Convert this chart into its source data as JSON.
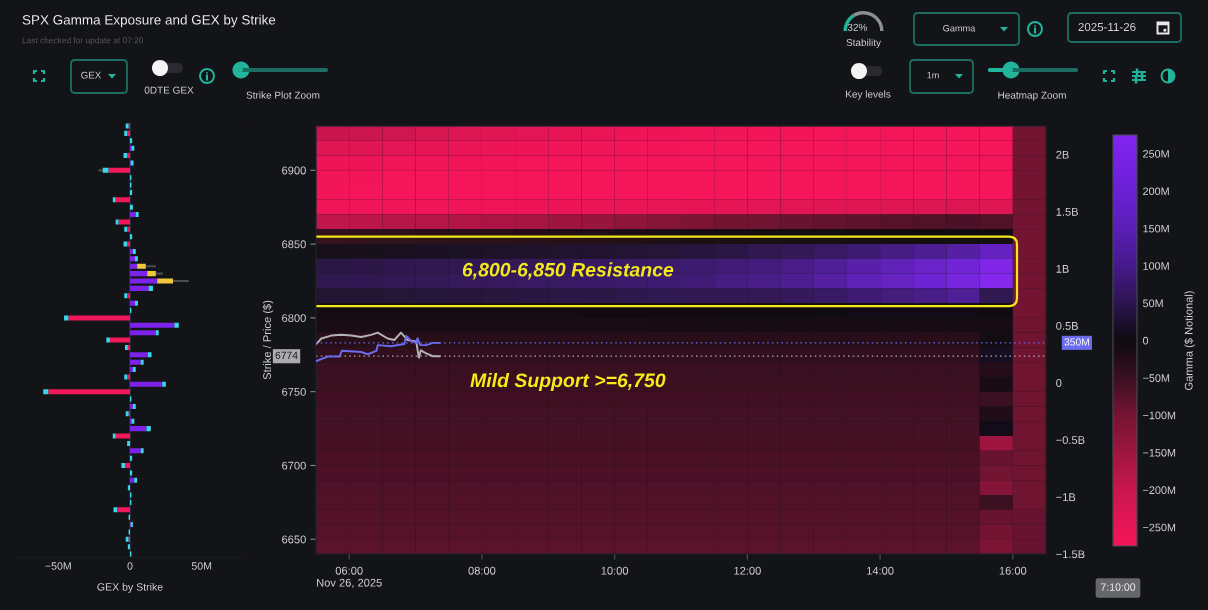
{
  "chart_data": [
    {
      "type": "other",
      "title": "SPX Gamma Exposure and GEX by Strike",
      "subtitle": "Last checked for update at 07:20",
      "annotations": [
        "GEX",
        "0DTE GEX",
        "Strike Plot Zoom",
        "Gamma",
        "2025-11-26",
        "Key levels",
        "1m",
        "Heatmap Zoom"
      ]
    },
    {
      "type": "donut",
      "title": "Stability",
      "categories": [
        null,
        null
      ],
      "values": [
        32,
        68
      ],
      "colors": [
        "#22b59c",
        "#8e8f93"
      ],
      "value_labels": [
        "32%",
        null
      ]
    },
    {
      "type": "bar",
      "orientation": "horizontal",
      "stacked": true,
      "xlabel": "GEX by Strike",
      "tick_labels": "x",
      "categories": [
        null,
        null,
        null,
        null,
        null,
        null,
        null,
        null,
        null,
        null,
        null,
        null,
        null,
        null,
        null,
        null,
        null,
        null,
        null,
        null,
        null,
        null,
        null,
        null,
        null,
        null,
        null,
        null,
        null,
        null,
        null,
        null,
        null,
        null,
        null,
        null,
        null,
        null,
        null,
        null,
        null,
        null,
        null,
        null,
        null,
        null,
        null,
        null,
        null,
        null,
        null,
        null,
        null,
        null,
        null,
        null,
        null,
        null,
        null
      ],
      "series": [
        {
          "values": [
            -1,
            -2,
            null,
            1,
            -2,
            0.5,
            -15,
            null,
            null,
            null,
            -10,
            null,
            4,
            -8,
            -2,
            null,
            -2,
            2,
            3.5,
            5,
            12,
            19,
            13,
            -2,
            3.5,
            null,
            -43,
            31,
            18,
            -14,
            -1.5,
            12.5,
            7.5,
            2,
            -2,
            22.5,
            -57,
            null,
            2,
            -1,
            1,
            11.5,
            -10,
            null,
            7.5,
            null,
            -3.5,
            null,
            3,
            null,
            null,
            null,
            -9,
            null,
            0.5,
            null,
            -1,
            null,
            null
          ],
          "colors": [
            "#f2185c",
            "#f2185c",
            "#7d22ea",
            "#7d22ea",
            "#f2185c",
            "#7d22ea",
            "#f2185c",
            "#7d22ea",
            "#7d22ea",
            "#7d22ea",
            "#f2185c",
            "#7d22ea",
            "#7d22ea",
            "#f2185c",
            "#f2185c",
            "#7d22ea",
            "#f2185c",
            "#7d22ea",
            "#7d22ea",
            "#7d22ea",
            "#7d22ea",
            "#7d22ea",
            "#7d22ea",
            "#f2185c",
            "#7d22ea",
            "#7d22ea",
            "#f2185c",
            "#7d22ea",
            "#7d22ea",
            "#f2185c",
            "#f2185c",
            "#7d22ea",
            "#7d22ea",
            "#7d22ea",
            "#f2185c",
            "#7d22ea",
            "#f2185c",
            "#7d22ea",
            "#7d22ea",
            "#f2185c",
            "#7d22ea",
            "#7d22ea",
            "#f2185c",
            "#7d22ea",
            "#7d22ea",
            "#7d22ea",
            "#f2185c",
            "#7d22ea",
            "#7d22ea",
            "#7d22ea",
            "#7d22ea",
            "#7d22ea",
            "#f2185c",
            "#7d22ea",
            "#7d22ea",
            "#7d22ea",
            "#f2185c",
            "#7d22ea",
            "#7d22ea"
          ]
        },
        {
          "values": [
            -2,
            -2,
            1.5,
            2,
            -2.5,
            2,
            -4,
            1,
            1,
            1.5,
            -2,
            2,
            2,
            -2,
            -2,
            1.5,
            -2.5,
            2,
            2,
            6,
            6,
            11,
            3,
            -2,
            2,
            1,
            -3,
            3,
            2,
            -2.5,
            -2,
            2.5,
            2,
            2,
            -2,
            2.5,
            -3.5,
            1,
            2,
            -2,
            2,
            3,
            -2,
            -2,
            2,
            1.5,
            -2.5,
            1.5,
            2,
            -1.5,
            1,
            1,
            -2.5,
            -1,
            1.5,
            -1,
            -2,
            -1.5,
            1
          ],
          "colors": [
            "#38d8ea",
            "#38d8ea",
            "#38d8ea",
            "#38d8ea",
            "#38d8ea",
            "#38d8ea",
            "#38d8ea",
            "#38d8ea",
            "#38d8ea",
            "#38d8ea",
            "#38d8ea",
            "#38d8ea",
            "#38d8ea",
            "#38d8ea",
            "#38d8ea",
            "#38d8ea",
            "#38d8ea",
            "#38d8ea",
            "#38d8ea",
            "#f0c93a",
            "#f0c93a",
            "#f0c93a",
            "#38d8ea",
            "#38d8ea",
            "#38d8ea",
            "#38d8ea",
            "#38d8ea",
            "#38d8ea",
            "#38d8ea",
            "#38d8ea",
            "#38d8ea",
            "#38d8ea",
            "#38d8ea",
            "#38d8ea",
            "#38d8ea",
            "#38d8ea",
            "#38d8ea",
            "#38d8ea",
            "#38d8ea",
            "#38d8ea",
            "#38d8ea",
            "#38d8ea",
            "#38d8ea",
            "#38d8ea",
            "#38d8ea",
            "#38d8ea",
            "#38d8ea",
            "#38d8ea",
            "#38d8ea",
            "#38d8ea",
            "#38d8ea",
            "#38d8ea",
            "#38d8ea",
            "#38d8ea",
            "#38d8ea",
            "#38d8ea",
            "#38d8ea",
            "#38d8ea",
            "#38d8ea"
          ],
          "errors": [
            null,
            null,
            null,
            null,
            null,
            null,
            [
              -22,
              -19
            ],
            null,
            null,
            null,
            null,
            null,
            null,
            null,
            null,
            null,
            null,
            null,
            null,
            [
              11,
              18
            ],
            [
              18,
              23
            ],
            [
              30,
              41
            ],
            null,
            null,
            null,
            null,
            null,
            null,
            null,
            null,
            null,
            null,
            null,
            null,
            null,
            null,
            null,
            null,
            null,
            null,
            null,
            null,
            null,
            null,
            null,
            null,
            null,
            null,
            null,
            null,
            null,
            null,
            null,
            null,
            null,
            null,
            null,
            null,
            null
          ]
        }
      ],
      "xlim": [
        -80,
        80
      ],
      "xticks": [
        {
          "value": -50,
          "label": "−50M"
        },
        0,
        {
          "value": 50,
          "label": "50M"
        }
      ],
      "ref_lines": [
        {
          "axis": "x",
          "value": 0,
          "color": "#3a2d4f"
        }
      ]
    },
    {
      "type": "heatmap",
      "ylabel": "Strike / Price ($)",
      "clabel": "Gamma ($ Notional)",
      "x": [
        5.75,
        6.25,
        6.75,
        7.25,
        7.75,
        8.25,
        8.75,
        9.25,
        9.75,
        10.25,
        10.75,
        11.25,
        11.75,
        12.25,
        12.75,
        13.25,
        13.75,
        14.25,
        14.75,
        15.25,
        15.75,
        16.25
      ],
      "y": [
        6925,
        6915,
        6905,
        6895,
        6885,
        6875,
        6865,
        6855,
        6845,
        6835,
        6825,
        6815,
        6805,
        6795,
        6785,
        6775,
        6765,
        6755,
        6745,
        6735,
        6725,
        6715,
        6705,
        6695,
        6685,
        6675,
        6665,
        6655,
        6645
      ],
      "cells": [
        [
          -200,
          -205,
          -210,
          -220,
          -230,
          -240,
          -245,
          -250,
          -255,
          -260,
          -262,
          -265,
          -268,
          -270,
          -270,
          -272,
          -272,
          -275,
          -275,
          -275,
          -275,
          -100
        ],
        [
          -235,
          -240,
          -245,
          -250,
          -255,
          -260,
          -262,
          -265,
          -268,
          -270,
          -270,
          -272,
          -272,
          -275,
          -275,
          -275,
          -275,
          -275,
          -275,
          -275,
          -275,
          -100
        ],
        [
          -260,
          -262,
          -265,
          -268,
          -270,
          -270,
          -272,
          -272,
          -275,
          -275,
          -275,
          -275,
          -275,
          -275,
          -275,
          -275,
          -275,
          -275,
          -275,
          -275,
          -275,
          -100
        ],
        [
          -268,
          -270,
          -272,
          -275,
          -275,
          -275,
          -275,
          -275,
          -275,
          -275,
          -275,
          -275,
          -275,
          -275,
          -275,
          -275,
          -275,
          -275,
          -275,
          -275,
          -275,
          -100
        ],
        [
          -270,
          -272,
          -275,
          -275,
          -275,
          -275,
          -275,
          -275,
          -275,
          -275,
          -275,
          -275,
          -275,
          -275,
          -275,
          -275,
          -275,
          -275,
          -275,
          -275,
          -272,
          -100
        ],
        [
          -265,
          -265,
          -265,
          -265,
          -265,
          -265,
          -262,
          -260,
          -258,
          -255,
          -252,
          -250,
          -248,
          -245,
          -242,
          -240,
          -238,
          -235,
          -232,
          -230,
          -235,
          -100
        ],
        [
          -190,
          -185,
          -180,
          -175,
          -170,
          -165,
          -160,
          -150,
          -140,
          -130,
          -120,
          -110,
          -100,
          -95,
          -90,
          -85,
          -80,
          -75,
          -70,
          -65,
          -70,
          -100
        ],
        [
          -40,
          -38,
          -35,
          -32,
          -30,
          -28,
          -25,
          -22,
          -20,
          -18,
          -15,
          -12,
          -10,
          -8,
          -6,
          -5,
          -4,
          -3,
          -2,
          0,
          0,
          -100
        ],
        [
          8,
          10,
          12,
          14,
          16,
          18,
          20,
          22,
          25,
          28,
          32,
          36,
          42,
          50,
          58,
          68,
          80,
          95,
          110,
          130,
          170,
          -100
        ],
        [
          42,
          45,
          48,
          50,
          52,
          55,
          58,
          62,
          66,
          70,
          74,
          78,
          85,
          92,
          100,
          118,
          140,
          160,
          185,
          215,
          260,
          -100
        ],
        [
          50,
          52,
          55,
          58,
          60,
          62,
          65,
          68,
          72,
          76,
          80,
          85,
          95,
          100,
          110,
          130,
          155,
          175,
          200,
          230,
          275,
          -100
        ],
        [
          28,
          30,
          32,
          34,
          36,
          38,
          40,
          42,
          45,
          48,
          50,
          52,
          55,
          58,
          62,
          70,
          80,
          90,
          100,
          115,
          50,
          -100
        ],
        [
          -5,
          -5,
          -5,
          -5,
          -5,
          -5,
          -5,
          -5,
          -4,
          -4,
          -3,
          -3,
          -2,
          0,
          2,
          4,
          5,
          5,
          5,
          5,
          0,
          -100
        ],
        [
          -15,
          -15,
          -15,
          -15,
          -15,
          -15,
          -15,
          -15,
          -15,
          -15,
          -12,
          -12,
          -10,
          -10,
          -10,
          -10,
          -10,
          -10,
          -10,
          -10,
          -10,
          -95
        ],
        [
          -30,
          -30,
          -30,
          -30,
          -30,
          -30,
          -30,
          -30,
          -30,
          -30,
          -30,
          -28,
          -28,
          -28,
          -28,
          -28,
          -28,
          -28,
          -28,
          -28,
          -5,
          -95
        ],
        [
          -40,
          -40,
          -40,
          -40,
          -40,
          -40,
          -40,
          -40,
          -40,
          -40,
          -40,
          -40,
          -40,
          -40,
          -40,
          -40,
          -40,
          -40,
          -40,
          -40,
          15,
          -95
        ],
        [
          -48,
          -48,
          -48,
          -48,
          -48,
          -48,
          -48,
          -48,
          -48,
          -48,
          -48,
          -48,
          -48,
          -48,
          -48,
          -48,
          -48,
          -48,
          -48,
          -48,
          -25,
          -95
        ],
        [
          -52,
          -52,
          -52,
          -52,
          -52,
          -52,
          -52,
          -52,
          -52,
          -52,
          -52,
          -52,
          -52,
          -52,
          -52,
          -52,
          -52,
          -52,
          -52,
          -52,
          -10,
          -95
        ],
        [
          -55,
          -55,
          -55,
          -55,
          -55,
          -55,
          -55,
          -55,
          -55,
          -55,
          -55,
          -55,
          -55,
          -55,
          -55,
          -55,
          -55,
          -55,
          -55,
          -55,
          -50,
          -95
        ],
        [
          -58,
          -58,
          -58,
          -58,
          -58,
          -58,
          -58,
          -58,
          -58,
          -58,
          -58,
          -58,
          -58,
          -58,
          -58,
          -58,
          -58,
          -58,
          -58,
          -58,
          -20,
          -95
        ],
        [
          -60,
          -60,
          -60,
          -60,
          -60,
          -60,
          -60,
          -60,
          -60,
          -60,
          -60,
          -60,
          -60,
          -60,
          -60,
          -60,
          -60,
          -60,
          -60,
          -60,
          5,
          -95
        ],
        [
          -62,
          -62,
          -62,
          -62,
          -62,
          -62,
          -62,
          -62,
          -62,
          -62,
          -62,
          -62,
          -62,
          -62,
          -62,
          -62,
          -62,
          -62,
          -62,
          -62,
          -150,
          -95
        ],
        [
          -64,
          -64,
          -64,
          -64,
          -64,
          -64,
          -64,
          -64,
          -64,
          -64,
          -64,
          -64,
          -64,
          -64,
          -64,
          -64,
          -64,
          -64,
          -64,
          -64,
          -90,
          -95
        ],
        [
          -66,
          -66,
          -66,
          -66,
          -66,
          -66,
          -66,
          -66,
          -66,
          -66,
          -66,
          -66,
          -66,
          -66,
          -66,
          -66,
          -66,
          -66,
          -66,
          -66,
          -100,
          -95
        ],
        [
          -68,
          -68,
          -68,
          -68,
          -68,
          -68,
          -68,
          -68,
          -68,
          -68,
          -68,
          -68,
          -68,
          -68,
          -68,
          -68,
          -68,
          -68,
          -68,
          -68,
          -120,
          -95
        ],
        [
          -70,
          -70,
          -70,
          -70,
          -70,
          -70,
          -70,
          -70,
          -70,
          -70,
          -70,
          -70,
          -70,
          -70,
          -70,
          -70,
          -70,
          -70,
          -70,
          -70,
          -50,
          -95
        ],
        [
          -72,
          -72,
          -72,
          -72,
          -72,
          -72,
          -72,
          -72,
          -72,
          -72,
          -72,
          -72,
          -72,
          -72,
          -72,
          -72,
          -72,
          -72,
          -72,
          -72,
          -90,
          -90
        ],
        [
          -75,
          -75,
          -75,
          -75,
          -75,
          -75,
          -75,
          -75,
          -75,
          -75,
          -75,
          -75,
          -75,
          -75,
          -75,
          -75,
          -75,
          -75,
          -75,
          -75,
          -100,
          -90
        ],
        [
          -78,
          -78,
          -78,
          -78,
          -78,
          -78,
          -78,
          -78,
          -78,
          -78,
          -78,
          -78,
          -78,
          -78,
          -78,
          -78,
          -78,
          -78,
          -78,
          -78,
          -110,
          -90
        ]
      ],
      "clim": [
        -275,
        275
      ],
      "cticks": [
        {
          "value": -250,
          "label": "−250M"
        },
        {
          "value": -200,
          "label": "−200M"
        },
        {
          "value": -150,
          "label": "−150M"
        },
        {
          "value": -100,
          "label": "−100M"
        },
        {
          "value": -50,
          "label": "−50M"
        },
        0,
        {
          "value": 50,
          "label": "50M"
        },
        {
          "value": 100,
          "label": "100M"
        },
        {
          "value": 150,
          "label": "150M"
        },
        {
          "value": 200,
          "label": "200M"
        },
        {
          "value": 250,
          "label": "250M"
        }
      ],
      "xlim": [
        5.5,
        16.5
      ],
      "xticks": [
        {
          "value": 6,
          "label": "06:00\nNov 26, 2025"
        },
        {
          "value": 8,
          "label": "08:00"
        },
        {
          "value": 10,
          "label": "10:00"
        },
        {
          "value": 12,
          "label": "12:00"
        },
        {
          "value": 14,
          "label": "14:00"
        },
        {
          "value": 16,
          "label": "16:00"
        }
      ],
      "ylim": [
        6640,
        6930
      ],
      "yticks": [
        6650,
        6700,
        6750,
        6800,
        6850,
        6900
      ],
      "y2lim": [
        -1.5,
        2.25
      ],
      "y2ticks": [
        {
          "value": -1.5,
          "label": "−1.5B"
        },
        {
          "value": -1,
          "label": "−1B"
        },
        {
          "value": -0.5,
          "label": "−0.5B"
        },
        0,
        {
          "value": 0.5,
          "label": "0.5B"
        },
        {
          "value": 1,
          "label": "1B"
        },
        {
          "value": 1.5,
          "label": "1.5B"
        },
        {
          "value": 2,
          "label": "2B"
        }
      ],
      "series": [
        {
          "type": "line",
          "color": "#b4b4b6",
          "x": [
            5.5,
            5.58,
            5.73,
            5.88,
            6.03,
            6.18,
            6.33,
            6.43,
            6.58,
            6.68,
            6.78,
            6.88,
            7.01,
            7.05,
            7.08,
            7.16,
            7.26,
            7.36
          ],
          "values": [
            6782,
            6786,
            6788,
            6788.5,
            6788,
            6787,
            6788.5,
            6790,
            6786,
            6785,
            6790,
            6785,
            6784,
            6773,
            6778,
            6776,
            6774,
            6774
          ]
        },
        {
          "type": "line",
          "color": "#6b6bef",
          "axis": "y2",
          "x": [
            5.5,
            5.68,
            5.85,
            5.89,
            6.18,
            6.28,
            6.41,
            6.43,
            6.63,
            6.83,
            6.86,
            6.93,
            7.01,
            7.03,
            7.07,
            7.16,
            7.26,
            7.36
          ],
          "values": [
            0.19,
            0.23,
            0.23,
            0.28,
            0.27,
            0.25,
            0.28,
            0.33,
            0.32,
            0.34,
            0.41,
            0.37,
            0.35,
            0.39,
            0.33,
            0.33,
            0.35,
            0.35
          ]
        }
      ],
      "ref_lines": [
        {
          "axis": "y",
          "value": 6774,
          "label": "6774",
          "color": "#acacae",
          "line_style": "dotted"
        },
        {
          "axis": "y2",
          "value": 0.35,
          "label": "350M",
          "color": "#6b6bef",
          "line_style": "dotted"
        }
      ],
      "bands": [
        {
          "axis": "y",
          "from": 6808,
          "to": 6855,
          "label": "6,800-6,850 Resistance",
          "color": "#f2e81c"
        }
      ],
      "annotations": [
        "Mild Support >=6,750",
        "7:10:00"
      ]
    }
  ]
}
